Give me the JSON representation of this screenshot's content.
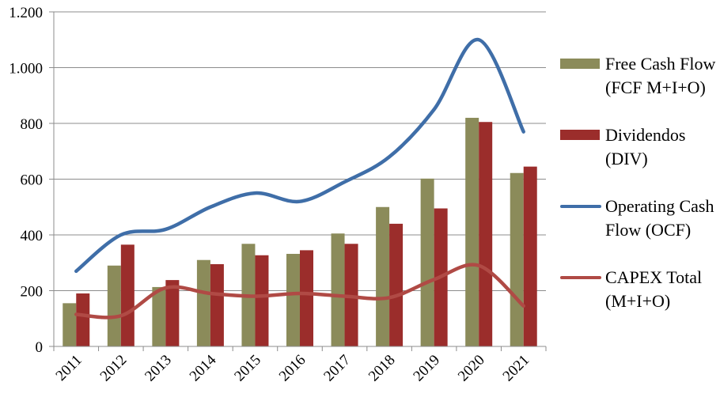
{
  "chart_data": {
    "type": "bar",
    "categories": [
      "2011",
      "2012",
      "2013",
      "2014",
      "2015",
      "2016",
      "2017",
      "2018",
      "2019",
      "2020",
      "2021"
    ],
    "ylim": [
      0,
      1200
    ],
    "yticks": [
      0,
      200,
      400,
      600,
      800,
      1000,
      1200
    ],
    "ytick_labels": [
      "0",
      "200",
      "400",
      "600",
      "800",
      "1.000",
      "1.200"
    ],
    "grid": true,
    "legend_position": "right",
    "series": [
      {
        "name": "Free Cash Flow (FCF M+I+O)",
        "kind": "bar",
        "color": "#8b8b5a",
        "values": [
          155,
          290,
          213,
          310,
          368,
          332,
          405,
          500,
          602,
          820,
          622
        ]
      },
      {
        "name": "Dividendos (DIV)",
        "kind": "bar",
        "color": "#9b2d2b",
        "values": [
          190,
          365,
          238,
          295,
          327,
          345,
          368,
          440,
          495,
          805,
          645
        ]
      },
      {
        "name": "Operating Cash Flow (OCF)",
        "kind": "line",
        "color": "#3f6ea8",
        "values": [
          270,
          400,
          420,
          500,
          550,
          520,
          590,
          680,
          850,
          1100,
          770
        ]
      },
      {
        "name": "CAPEX Total (M+I+O)",
        "kind": "line",
        "color": "#b04a45",
        "values": [
          115,
          110,
          210,
          190,
          180,
          190,
          180,
          175,
          240,
          290,
          145
        ]
      }
    ]
  }
}
